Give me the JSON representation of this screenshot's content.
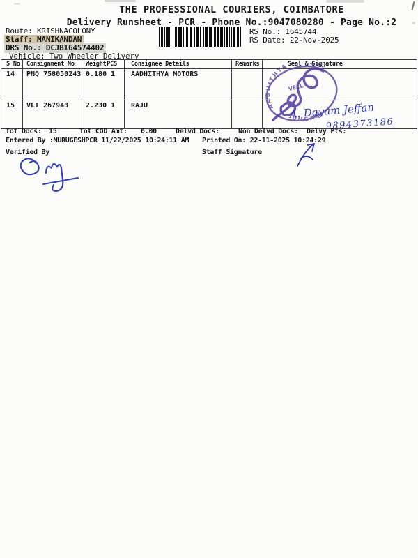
{
  "header": {
    "title": "THE PROFESSIONAL COURIERS, COIMBATORE",
    "subtitle": "Delivery Runsheet - PCR - Phone No.:9047080280 - Page No.:2"
  },
  "info": {
    "route_label": "Route:",
    "route_value": "KRISHNACOLONY",
    "staff_label": "Staff:",
    "staff_value": "MANIKANDAN",
    "drs_label": "DRS No.:",
    "drs_value": "DCJB164574402",
    "vehicle_label": "Vehicle:",
    "vehicle_value": "Two Wheeler Delivery",
    "rs_no_label": "RS No.:",
    "rs_no_value": "1645744",
    "rs_date_label": "RS Date:",
    "rs_date_value": "22-Nov-2025",
    "barcode_value": "DCJB164574402"
  },
  "table": {
    "headers": [
      "S No",
      "Consignment No",
      "Weight",
      "PCS",
      "Consignee Details",
      "Remarks",
      "Seal & Signature"
    ],
    "rows": [
      {
        "s_no": "14",
        "consignment_no": "PNQ 758050243",
        "weight": "0.180",
        "pcs": "1",
        "consignee": "AADHITHYA MOTORS",
        "remarks": ""
      },
      {
        "s_no": "15",
        "consignment_no": "VLI 267943",
        "weight": "2.230",
        "pcs": "1",
        "consignee": "RAJU",
        "remarks": ""
      }
    ]
  },
  "seal": {
    "stamp_arc_top": "AADHITHYA MOTORS",
    "stamp_inner": "VELL",
    "stamp_arc_bottom": "UNGAM",
    "signature_name": "A. Dayam Jeffan",
    "signature_phone": "9894373186"
  },
  "totals": {
    "tot_docs_label": "Tot Docs:",
    "tot_docs_value": "15",
    "tot_cod_label": "Tot COD Amt:",
    "tot_cod_value": "0.00",
    "delvd_label": "Delvd Docs:",
    "delvd_value": "",
    "non_delvd_label": "Non Delvd Docs:",
    "non_delvd_value": "",
    "delvy_pts_label": "Delvy Pts:",
    "delvy_pts_value": ""
  },
  "footer": {
    "entered_by": "Entered By :MURUGESHPCR 11/22/2025 10:24:11 AM",
    "printed_on": "Printed On: 22-11-2025 10:24:29",
    "verified_by_label": "Verified By",
    "staff_signature_label": "Staff Signature"
  }
}
